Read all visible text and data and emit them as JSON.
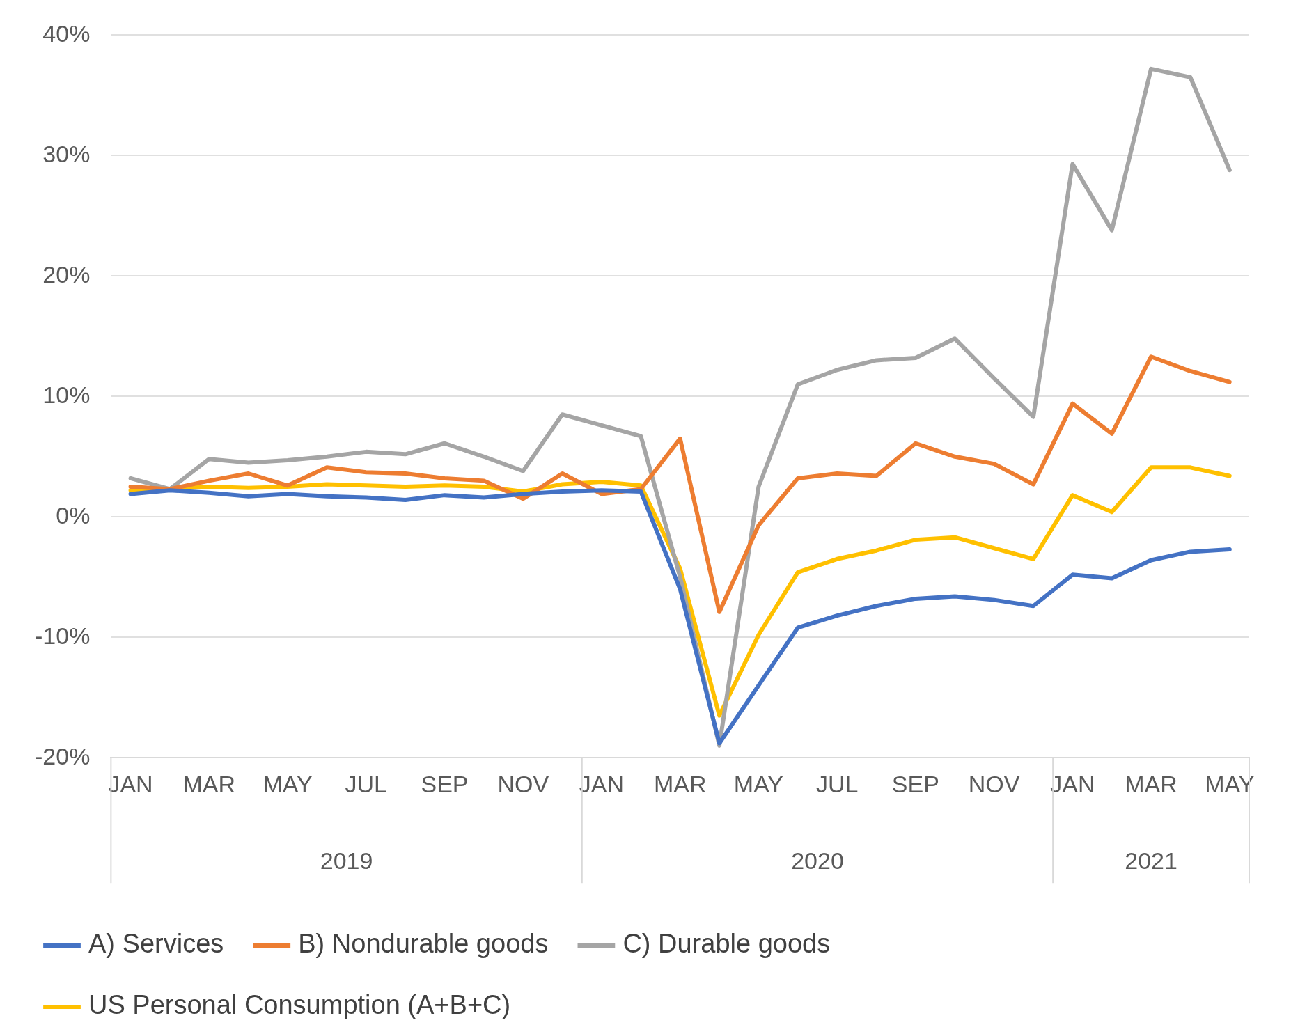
{
  "chart_data": {
    "type": "line",
    "categories": [
      "JAN",
      null,
      "MAR",
      null,
      "MAY",
      null,
      "JUL",
      null,
      "SEP",
      null,
      "NOV",
      null,
      "JAN",
      null,
      "MAR",
      null,
      "MAY",
      null,
      "JUL",
      null,
      "SEP",
      null,
      "NOV",
      null,
      "JAN",
      null,
      "MAR",
      null,
      "MAY"
    ],
    "series": [
      {
        "name": "A) Services",
        "color": "#4472c4",
        "values": [
          1.9,
          2.2,
          2.0,
          1.7,
          1.9,
          1.7,
          1.6,
          1.4,
          1.8,
          1.6,
          1.9,
          2.1,
          2.2,
          2.1,
          -6,
          -18.8,
          -14,
          -9.2,
          -8.2,
          -7.4,
          -6.8,
          -6.6,
          -6.9,
          -7.4,
          -4.8,
          -5.1,
          -3.6,
          -2.9,
          -2.7
        ]
      },
      {
        "name": "B) Nondurable goods",
        "color": "#ed7d31",
        "values": [
          2.5,
          2.3,
          3.0,
          3.6,
          2.6,
          4.1,
          3.7,
          3.6,
          3.2,
          3.0,
          1.5,
          3.6,
          1.9,
          2.3,
          6.5,
          -7.9,
          -0.7,
          3.2,
          3.6,
          3.4,
          6.1,
          5.0,
          4.4,
          2.7,
          9.4,
          6.9,
          13.3,
          12.1,
          11.2
        ]
      },
      {
        "name": "C) Durable goods",
        "color": "#a5a5a5",
        "values": [
          3.2,
          2.3,
          4.8,
          4.5,
          4.7,
          5.0,
          5.4,
          5.2,
          6.1,
          5.0,
          3.8,
          8.5,
          7.6,
          6.7,
          -5,
          -19,
          2.5,
          11,
          12.2,
          13.0,
          13.2,
          14.8,
          11.5,
          8.3,
          29.3,
          23.8,
          37.2,
          36.5,
          28.8
        ]
      },
      {
        "name": "US Personal Consumption (A+B+C)",
        "color": "#ffc000",
        "values": [
          2.2,
          2.3,
          2.5,
          2.4,
          2.5,
          2.7,
          2.6,
          2.5,
          2.6,
          2.5,
          2.1,
          2.7,
          2.9,
          2.6,
          -4.3,
          -16.5,
          -9.8,
          -4.6,
          -3.5,
          -2.8,
          -1.9,
          -1.7,
          -2.6,
          -3.5,
          1.8,
          0.4,
          4.1,
          4.1,
          3.4
        ]
      }
    ],
    "ylim": [
      -20,
      40
    ],
    "yticks": [
      {
        "value": -20,
        "label": "-20%"
      },
      {
        "value": -10,
        "label": "-10%"
      },
      {
        "value": 0,
        "label": "0%"
      },
      {
        "value": 10,
        "label": "10%"
      },
      {
        "value": 20,
        "label": "20%"
      },
      {
        "value": 30,
        "label": "30%"
      },
      {
        "value": 40,
        "label": "40%"
      }
    ],
    "annotations": [
      "2019",
      "2020",
      "2021"
    ],
    "grid": "y",
    "legend": "bottom",
    "marker": "none",
    "line_style": "solid"
  }
}
